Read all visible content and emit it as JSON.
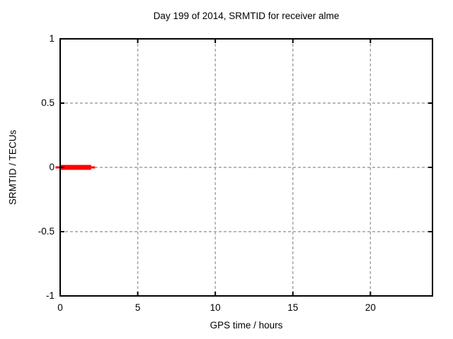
{
  "chart_data": {
    "type": "line",
    "title": "Day 199 of 2014, SRMTID for receiver alme",
    "xlabel": "GPS time / hours",
    "ylabel": "SRMTID / TECUs",
    "xlim": [
      0,
      24
    ],
    "ylim": [
      -1,
      1
    ],
    "xticks": [
      {
        "value": 0,
        "label": "0"
      },
      {
        "value": 5,
        "label": "5"
      },
      {
        "value": 10,
        "label": "10"
      },
      {
        "value": 15,
        "label": "15"
      },
      {
        "value": 20,
        "label": "20"
      }
    ],
    "yticks": [
      {
        "value": -1,
        "label": "-1"
      },
      {
        "value": -0.5,
        "label": "-0.5"
      },
      {
        "value": 0,
        "label": "0"
      },
      {
        "value": 0.5,
        "label": "0.5"
      },
      {
        "value": 1,
        "label": "1"
      }
    ],
    "grid": {
      "x_values": [
        5,
        10,
        15,
        20
      ],
      "y_values": [
        -0.5,
        0,
        0.5
      ],
      "style": "dashed",
      "color": "#a0a0a0"
    },
    "legend": null,
    "series": [
      {
        "name": "SRMTID",
        "color": "#ff0000",
        "note": "SRMTID is approximately 0 TECUs from GPS hour 0 to about hour 2.2; no data for the rest of the day",
        "segments": [
          {
            "x_start": -0.3,
            "x_end": 0.0,
            "y": 0,
            "thickness_px": 3
          },
          {
            "x_start": 0.0,
            "x_end": 2.0,
            "y": 0,
            "thickness_px": 7
          },
          {
            "x_start": 2.0,
            "x_end": 2.25,
            "y": 0,
            "thickness_px": 3
          }
        ]
      }
    ],
    "colors": {
      "background": "#ffffff",
      "border": "#000000",
      "text": "#000000"
    }
  }
}
